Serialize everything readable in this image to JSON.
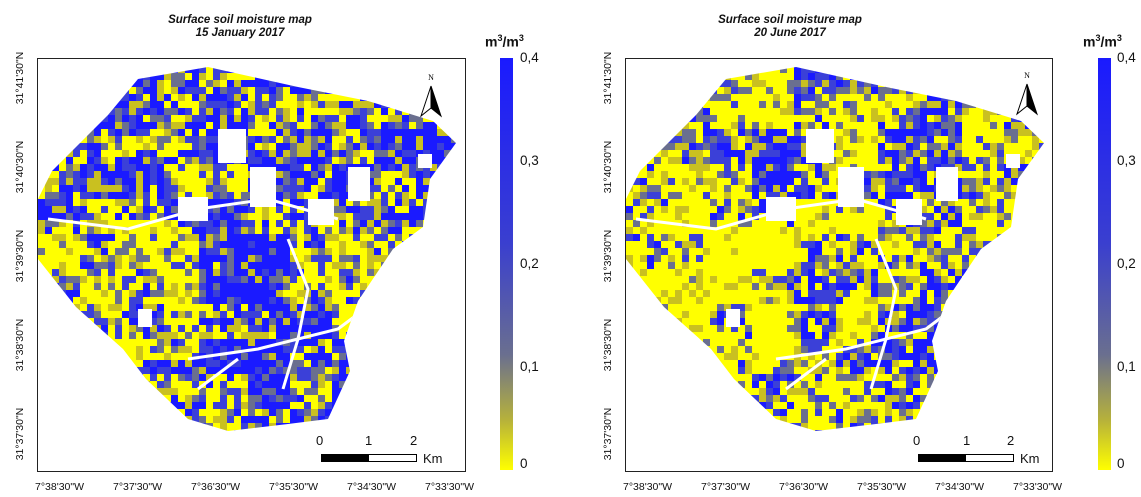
{
  "colors": {
    "wet": "#1a1aff",
    "mid": "#6a6f8f",
    "dry": "#ffff00"
  },
  "colorbar": {
    "unit_base": "m",
    "unit_exp": "3",
    "unit_sep": "/m",
    "unit_exp2": "3",
    "ticks": [
      "0,4",
      "0,3",
      "0,2",
      "0,1",
      "0"
    ]
  },
  "north_label": "N",
  "scale": {
    "labels": [
      "0",
      "1",
      "2"
    ],
    "unit": "Km"
  },
  "latitudes": [
    "31°41'30\"N",
    "31°40'30\"N",
    "31°39'30\"N",
    "31°38'30\"N",
    "31°37'30\"N"
  ],
  "longitudes": [
    "7°38'30\"W",
    "7°37'30\"W",
    "7°36'30\"W",
    "7°35'30\"W",
    "7°34'30\"W",
    "7°33'30\"W"
  ],
  "maps": [
    {
      "title": "Surface soil moisture map",
      "date": "15 January 2017",
      "wet_fraction": 0.58
    },
    {
      "title": "Surface soil moisture map",
      "date": "20 June 2017",
      "wet_fraction": 0.38
    }
  ]
}
